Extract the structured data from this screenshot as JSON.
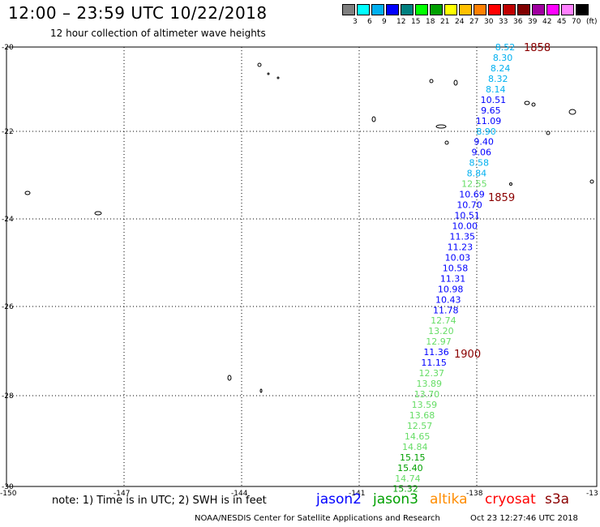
{
  "header": {
    "title": "12:00 – 23:59 UTC 10/22/2018",
    "subtitle": "12 hour collection of altimeter wave heights"
  },
  "legend": {
    "colors": [
      "#7f7f7f",
      "#00ffff",
      "#00b0f0",
      "#0000ff",
      "#008080",
      "#00ff00",
      "#00a000",
      "#ffff00",
      "#ffc000",
      "#ff8000",
      "#ff0000",
      "#c00000",
      "#800000",
      "#a000a0",
      "#ff00ff",
      "#ff80ff",
      "#000000"
    ],
    "labels": [
      "3",
      "6",
      "9",
      "12",
      "15",
      "18",
      "21",
      "24",
      "27",
      "30",
      "33",
      "36",
      "39",
      "42",
      "45",
      "70",
      "(ft)"
    ]
  },
  "axes": {
    "lon_ticks": [
      "-150",
      "-147",
      "-144",
      "-141",
      "-138",
      "-13"
    ],
    "lat_ticks": [
      "-20",
      "-22",
      "-24",
      "-26",
      "-28",
      "-30"
    ]
  },
  "times": [
    "1858",
    "1859",
    "1900"
  ],
  "observations": [
    {
      "v": "8.52",
      "c": "#00b0f0"
    },
    {
      "v": "8.30",
      "c": "#00b0f0"
    },
    {
      "v": "8.24",
      "c": "#00b0f0"
    },
    {
      "v": "8.32",
      "c": "#00b0f0"
    },
    {
      "v": "8.14",
      "c": "#00b0f0"
    },
    {
      "v": "10.51",
      "c": "#0000ff"
    },
    {
      "v": "9.65",
      "c": "#0000ff"
    },
    {
      "v": "11.09",
      "c": "#0000ff"
    },
    {
      "v": "8.90",
      "c": "#00b0f0"
    },
    {
      "v": "9.40",
      "c": "#0000ff"
    },
    {
      "v": "9.06",
      "c": "#0000ff"
    },
    {
      "v": "8.58",
      "c": "#00b0f0"
    },
    {
      "v": "8.84",
      "c": "#00b0f0"
    },
    {
      "v": "12.55",
      "c": "#66dd66"
    },
    {
      "v": "10.69",
      "c": "#0000ff"
    },
    {
      "v": "10.70",
      "c": "#0000ff"
    },
    {
      "v": "10.51",
      "c": "#0000ff"
    },
    {
      "v": "10.00",
      "c": "#0000ff"
    },
    {
      "v": "11.35",
      "c": "#0000ff"
    },
    {
      "v": "11.23",
      "c": "#0000ff"
    },
    {
      "v": "10.03",
      "c": "#0000ff"
    },
    {
      "v": "10.58",
      "c": "#0000ff"
    },
    {
      "v": "11.31",
      "c": "#0000ff"
    },
    {
      "v": "10.98",
      "c": "#0000ff"
    },
    {
      "v": "10.43",
      "c": "#0000ff"
    },
    {
      "v": "11.78",
      "c": "#0000ff"
    },
    {
      "v": "12.74",
      "c": "#66dd66"
    },
    {
      "v": "13.20",
      "c": "#66dd66"
    },
    {
      "v": "12.97",
      "c": "#66dd66"
    },
    {
      "v": "11.36",
      "c": "#0000ff"
    },
    {
      "v": "11.15",
      "c": "#0000ff"
    },
    {
      "v": "12.37",
      "c": "#66dd66"
    },
    {
      "v": "13.89",
      "c": "#66dd66"
    },
    {
      "v": "13.70",
      "c": "#66dd66"
    },
    {
      "v": "13.59",
      "c": "#66dd66"
    },
    {
      "v": "13.68",
      "c": "#66dd66"
    },
    {
      "v": "12.57",
      "c": "#66dd66"
    },
    {
      "v": "14.65",
      "c": "#66dd66"
    },
    {
      "v": "14.84",
      "c": "#66dd66"
    },
    {
      "v": "15.15",
      "c": "#00a000"
    },
    {
      "v": "15.40",
      "c": "#00a000"
    },
    {
      "v": "14.74",
      "c": "#66dd66"
    },
    {
      "v": "15.32",
      "c": "#00a000"
    }
  ],
  "footer": {
    "note": "note: 1) Time is in UTC; 2) SWH is in feet",
    "satellites": [
      {
        "name": "jason2",
        "color": "#0000ff"
      },
      {
        "name": "jason3",
        "color": "#00a000"
      },
      {
        "name": "altika",
        "color": "#ff8c00"
      },
      {
        "name": "cryosat",
        "color": "#ff0000"
      },
      {
        "name": "s3a",
        "color": "#8b0000"
      }
    ],
    "credit": "NOAA/NESDIS Center for Satellite Applications and Research",
    "timestamp": "Oct 23 12:27:46 UTC 2018"
  }
}
